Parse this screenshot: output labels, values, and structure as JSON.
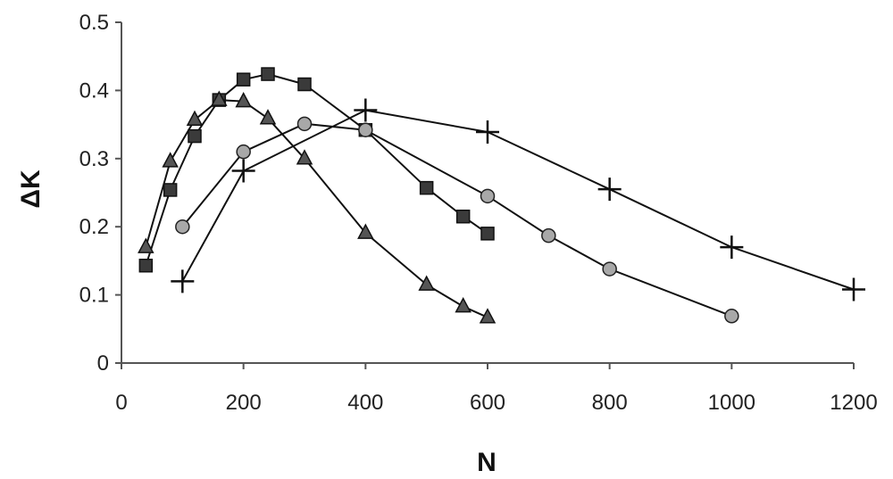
{
  "chart_data": {
    "type": "line",
    "title": "",
    "xlabel": "N",
    "ylabel": "ΔK",
    "xlim": [
      0,
      1200
    ],
    "ylim": [
      0,
      0.5
    ],
    "x_ticks": [
      0,
      200,
      400,
      600,
      800,
      1000,
      1200
    ],
    "x_tick_labels": [
      "0",
      "200",
      "400",
      "600",
      "800",
      "1000",
      "1200"
    ],
    "y_ticks": [
      0,
      0.1,
      0.2,
      0.3,
      0.4,
      0.5
    ],
    "y_tick_labels": [
      "0",
      "0.1",
      "0.2",
      "0.3",
      "0.4",
      "0.5"
    ],
    "grid": false,
    "legend": "none",
    "series": [
      {
        "marker": "square",
        "color": "#3a3a3a",
        "points": [
          [
            40,
            0.143
          ],
          [
            80,
            0.254
          ],
          [
            120,
            0.333
          ],
          [
            160,
            0.386
          ],
          [
            200,
            0.416
          ],
          [
            240,
            0.424
          ],
          [
            300,
            0.409
          ],
          [
            400,
            0.342
          ],
          [
            500,
            0.257
          ],
          [
            560,
            0.215
          ],
          [
            600,
            0.19
          ]
        ]
      },
      {
        "marker": "triangle",
        "color": "#555555",
        "points": [
          [
            40,
            0.17
          ],
          [
            80,
            0.296
          ],
          [
            120,
            0.357
          ],
          [
            160,
            0.386
          ],
          [
            200,
            0.384
          ],
          [
            240,
            0.359
          ],
          [
            300,
            0.3
          ],
          [
            400,
            0.191
          ],
          [
            500,
            0.115
          ],
          [
            560,
            0.083
          ],
          [
            600,
            0.067
          ]
        ]
      },
      {
        "marker": "circle",
        "color": "#a8a8a8",
        "points": [
          [
            100,
            0.2
          ],
          [
            200,
            0.31
          ],
          [
            300,
            0.351
          ],
          [
            400,
            0.342
          ],
          [
            600,
            0.245
          ],
          [
            700,
            0.187
          ],
          [
            800,
            0.138
          ],
          [
            1000,
            0.069
          ]
        ]
      },
      {
        "marker": "plus",
        "color": "#111111",
        "points": [
          [
            100,
            0.12
          ],
          [
            200,
            0.282
          ],
          [
            400,
            0.371
          ],
          [
            600,
            0.339
          ],
          [
            800,
            0.255
          ],
          [
            1000,
            0.17
          ],
          [
            1200,
            0.108
          ]
        ]
      }
    ]
  }
}
